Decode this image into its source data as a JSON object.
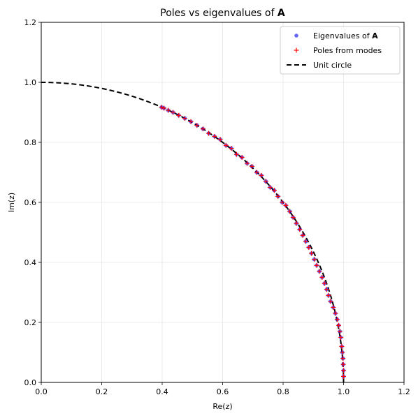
{
  "chart_data": {
    "type": "scatter",
    "title": "Poles vs eigenvalues of ",
    "title_bold": "A",
    "xlabel": "Re(z)",
    "ylabel": "Im(z)",
    "xlim": [
      0,
      1.2
    ],
    "ylim": [
      0,
      1.2
    ],
    "xticks": [
      "0.0",
      "0.2",
      "0.4",
      "0.6",
      "0.8",
      "1.0",
      "1.2"
    ],
    "yticks": [
      "0.0",
      "0.2",
      "0.4",
      "0.6",
      "0.8",
      "1.0",
      "1.2"
    ],
    "grid": true,
    "legend_position": "top-right",
    "legend": [
      {
        "label": "Eigenvalues of ",
        "bold_suffix": "A",
        "marker": "circle",
        "color": "#0000ff"
      },
      {
        "label": "Poles from modes",
        "bold_suffix": "",
        "marker": "plus",
        "color": "#ff0000"
      },
      {
        "label": "Unit circle",
        "bold_suffix": "",
        "marker": "dashed-line",
        "color": "#000000"
      }
    ],
    "unit_circle": {
      "angle_range_deg": [
        0,
        90
      ],
      "radius": 1.0
    },
    "series": [
      {
        "name": "Eigenvalues of A",
        "marker": "circle",
        "color": "#0000ff",
        "points": [
          [
            1.0,
            0.02
          ],
          [
            1.0,
            0.04
          ],
          [
            0.999,
            0.06
          ],
          [
            0.998,
            0.08
          ],
          [
            0.996,
            0.1
          ],
          [
            0.994,
            0.12
          ],
          [
            0.991,
            0.15
          ],
          [
            0.988,
            0.17
          ],
          [
            0.984,
            0.19
          ],
          [
            0.979,
            0.21
          ],
          [
            0.973,
            0.23
          ],
          [
            0.966,
            0.25
          ],
          [
            0.957,
            0.27
          ],
          [
            0.95,
            0.29
          ],
          [
            0.944,
            0.31
          ],
          [
            0.937,
            0.33
          ],
          [
            0.929,
            0.35
          ],
          [
            0.92,
            0.37
          ],
          [
            0.911,
            0.39
          ],
          [
            0.903,
            0.41
          ],
          [
            0.894,
            0.43
          ],
          [
            0.885,
            0.45
          ],
          [
            0.875,
            0.47
          ],
          [
            0.865,
            0.49
          ],
          [
            0.855,
            0.51
          ],
          [
            0.844,
            0.53
          ],
          [
            0.833,
            0.55
          ],
          [
            0.822,
            0.57
          ],
          [
            0.809,
            0.59
          ],
          [
            0.797,
            0.6
          ],
          [
            0.783,
            0.62
          ],
          [
            0.771,
            0.64
          ],
          [
            0.757,
            0.65
          ],
          [
            0.743,
            0.67
          ],
          [
            0.728,
            0.69
          ],
          [
            0.713,
            0.7
          ],
          [
            0.697,
            0.72
          ],
          [
            0.681,
            0.73
          ],
          [
            0.664,
            0.75
          ],
          [
            0.646,
            0.76
          ],
          [
            0.629,
            0.78
          ],
          [
            0.611,
            0.79
          ],
          [
            0.592,
            0.81
          ],
          [
            0.573,
            0.82
          ],
          [
            0.554,
            0.83
          ],
          [
            0.535,
            0.845
          ],
          [
            0.515,
            0.857
          ],
          [
            0.495,
            0.869
          ],
          [
            0.475,
            0.88
          ],
          [
            0.455,
            0.89
          ],
          [
            0.436,
            0.9
          ],
          [
            0.42,
            0.907
          ],
          [
            0.406,
            0.914
          ],
          [
            0.398,
            0.917
          ]
        ]
      },
      {
        "name": "Poles from modes",
        "marker": "plus",
        "color": "#ff0000",
        "points": [
          [
            1.0,
            0.02
          ],
          [
            1.0,
            0.04
          ],
          [
            0.999,
            0.06
          ],
          [
            0.998,
            0.08
          ],
          [
            0.996,
            0.1
          ],
          [
            0.994,
            0.12
          ],
          [
            0.991,
            0.15
          ],
          [
            0.988,
            0.17
          ],
          [
            0.984,
            0.19
          ],
          [
            0.979,
            0.21
          ],
          [
            0.973,
            0.23
          ],
          [
            0.966,
            0.25
          ],
          [
            0.957,
            0.27
          ],
          [
            0.95,
            0.29
          ],
          [
            0.944,
            0.31
          ],
          [
            0.937,
            0.33
          ],
          [
            0.929,
            0.35
          ],
          [
            0.92,
            0.37
          ],
          [
            0.911,
            0.39
          ],
          [
            0.903,
            0.41
          ],
          [
            0.894,
            0.43
          ],
          [
            0.885,
            0.45
          ],
          [
            0.875,
            0.47
          ],
          [
            0.865,
            0.49
          ],
          [
            0.855,
            0.51
          ],
          [
            0.844,
            0.53
          ],
          [
            0.833,
            0.55
          ],
          [
            0.822,
            0.57
          ],
          [
            0.809,
            0.59
          ],
          [
            0.797,
            0.6
          ],
          [
            0.783,
            0.62
          ],
          [
            0.771,
            0.64
          ],
          [
            0.757,
            0.65
          ],
          [
            0.743,
            0.67
          ],
          [
            0.728,
            0.69
          ],
          [
            0.713,
            0.7
          ],
          [
            0.697,
            0.72
          ],
          [
            0.681,
            0.73
          ],
          [
            0.664,
            0.75
          ],
          [
            0.646,
            0.76
          ],
          [
            0.629,
            0.78
          ],
          [
            0.611,
            0.79
          ],
          [
            0.592,
            0.81
          ],
          [
            0.573,
            0.82
          ],
          [
            0.554,
            0.83
          ],
          [
            0.535,
            0.845
          ],
          [
            0.515,
            0.857
          ],
          [
            0.495,
            0.869
          ],
          [
            0.475,
            0.88
          ],
          [
            0.455,
            0.89
          ],
          [
            0.436,
            0.9
          ],
          [
            0.42,
            0.907
          ],
          [
            0.406,
            0.914
          ],
          [
            0.398,
            0.917
          ]
        ]
      }
    ]
  }
}
